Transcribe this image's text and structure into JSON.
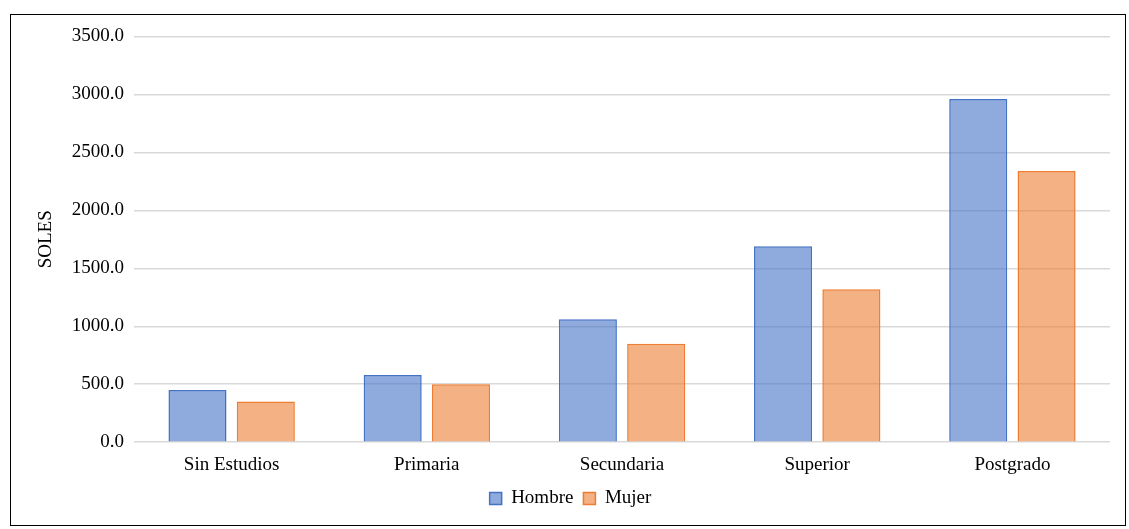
{
  "chart_data": {
    "type": "bar",
    "ylabel": "SOLES",
    "categories": [
      "Sin Estudios",
      "Primaria",
      "Secundaria",
      "Superior",
      "Postgrado"
    ],
    "series": [
      {
        "name": "Hombre",
        "color": "#4472c4",
        "values": [
          450,
          580,
          1060,
          1690,
          2960
        ]
      },
      {
        "name": "Mujer",
        "color": "#ed7d31",
        "values": [
          350,
          500,
          850,
          1320,
          2340
        ]
      }
    ],
    "ylim": [
      0,
      3500
    ],
    "yticks": [
      {
        "value": 0,
        "label": "0.0"
      },
      {
        "value": 500,
        "label": "500.0"
      },
      {
        "value": 1000,
        "label": "1000.0"
      },
      {
        "value": 1500,
        "label": "1500.0"
      },
      {
        "value": 2000,
        "label": "2000.0"
      },
      {
        "value": 2500,
        "label": "2500.0"
      },
      {
        "value": 3000,
        "label": "3000.0"
      },
      {
        "value": 3500,
        "label": "3500.0"
      }
    ],
    "grid": "y",
    "legend": "bottom"
  }
}
